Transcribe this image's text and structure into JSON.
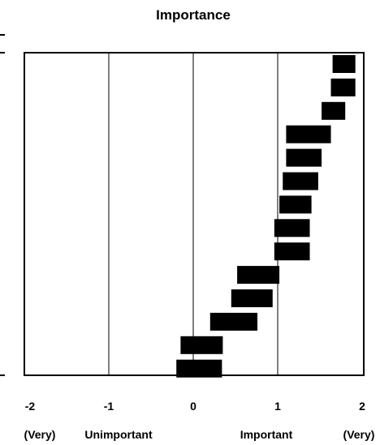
{
  "chart_data": {
    "type": "bar",
    "title": "Importance",
    "xlabel": "",
    "ylabel": "",
    "xlim": [
      -2,
      2
    ],
    "grid": "vertical-at-integers",
    "bar_color": "#000000",
    "x_ticks": [
      "-2",
      "-1",
      "0",
      "1",
      "2"
    ],
    "x_tick_values": [
      -2,
      -1,
      0,
      1,
      2
    ],
    "x_sublabels": {
      "left_very": "(Very)",
      "unimportant": "Unimportant",
      "important": "Important",
      "right_very": "(Very)"
    },
    "intervals": [
      {
        "low": 1.65,
        "high": 1.92
      },
      {
        "low": 1.63,
        "high": 1.92
      },
      {
        "low": 1.52,
        "high": 1.8
      },
      {
        "low": 1.1,
        "high": 1.63
      },
      {
        "low": 1.1,
        "high": 1.52
      },
      {
        "low": 1.06,
        "high": 1.48
      },
      {
        "low": 1.02,
        "high": 1.4
      },
      {
        "low": 0.96,
        "high": 1.38
      },
      {
        "low": 0.96,
        "high": 1.38
      },
      {
        "low": 0.52,
        "high": 1.02
      },
      {
        "low": 0.45,
        "high": 0.94
      },
      {
        "low": 0.2,
        "high": 0.76
      },
      {
        "low": -0.15,
        "high": 0.35
      },
      {
        "low": -0.2,
        "high": 0.34
      }
    ]
  }
}
